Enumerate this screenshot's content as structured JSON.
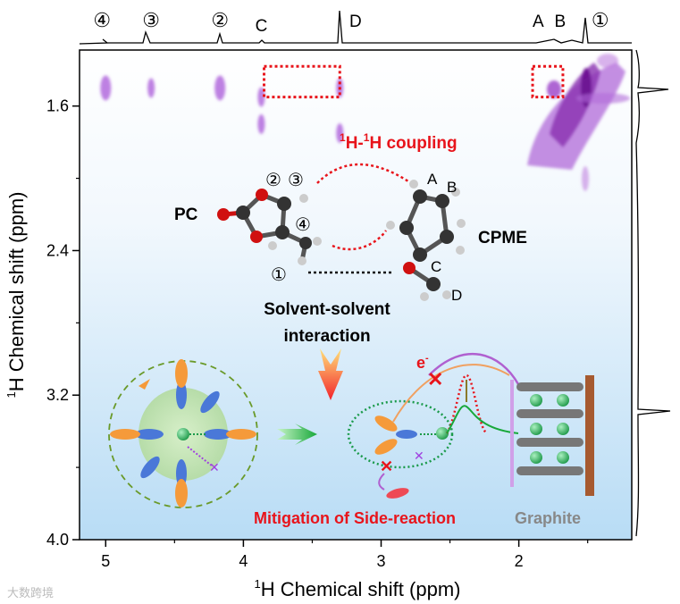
{
  "chart_data": {
    "type": "heatmap",
    "subtype": "2D 1H-1H COSY contour",
    "xlabel_sup": "1",
    "xlabel": "H Chemical shift (ppm)",
    "ylabel_sup": "1",
    "ylabel": "H Chemical shift (ppm)",
    "xlim": [
      5.19,
      1.18
    ],
    "ylim": [
      1.29,
      4.0
    ],
    "x_ticks": [
      5,
      4,
      3,
      2
    ],
    "x_tick_labels": [
      "5",
      "4",
      "3",
      "2"
    ],
    "y_ticks": [
      1.6,
      2.4,
      3.2,
      4.0
    ],
    "y_tick_labels": [
      "1.6",
      "2.4",
      "3.2",
      "4.0"
    ],
    "grid": false,
    "colors": {
      "contour": "#a855d8",
      "contour_dark": "#7a1fa0",
      "highlight_box": "#e8141b",
      "background_top": "#ffffff",
      "background_bottom": "#b8dcf5"
    },
    "top_projection_labels": [
      {
        "label": "④",
        "ppm": 5.0
      },
      {
        "label": "③",
        "ppm": 4.67
      },
      {
        "label": "②",
        "ppm": 4.17
      },
      {
        "label": "C",
        "ppm": 3.87
      },
      {
        "label": "D",
        "ppm": 3.29
      },
      {
        "label": "A",
        "ppm": 1.82
      },
      {
        "label": "B",
        "ppm": 1.7
      },
      {
        "label": "①",
        "ppm": 1.5
      }
    ],
    "cross_peaks": [
      {
        "x": 5.0,
        "y": 1.5,
        "label": "④"
      },
      {
        "x": 4.67,
        "y": 1.5,
        "label": "③"
      },
      {
        "x": 4.17,
        "y": 1.5,
        "label": "②"
      },
      {
        "x": 3.87,
        "y": 1.55,
        "label": "C"
      },
      {
        "x": 3.87,
        "y": 1.7,
        "label": "C"
      },
      {
        "x": 3.3,
        "y": 1.5,
        "label": "D"
      },
      {
        "x": 3.3,
        "y": 1.75,
        "label": "D"
      }
    ],
    "highlight_boxes": [
      {
        "x": [
          3.3,
          3.85
        ],
        "y": [
          1.38,
          1.55
        ]
      },
      {
        "x": [
          1.68,
          1.9
        ],
        "y": [
          1.38,
          1.55
        ]
      }
    ]
  },
  "annotations": {
    "coupling_sup1": "1",
    "coupling_mid": "H-",
    "coupling_sup2": "1",
    "coupling_end": "H coupling",
    "pc": "PC",
    "cpme": "CPME",
    "atom_labels": [
      "②",
      "③",
      "④",
      "①",
      "A",
      "B",
      "C",
      "D"
    ],
    "solvent_line1": "Solvent-solvent",
    "solvent_line2": "interaction",
    "electron": "e",
    "electron_sup": "-",
    "mitigation": "Mitigation of Side-reaction",
    "graphite": "Graphite"
  },
  "watermark": "大数跨境"
}
